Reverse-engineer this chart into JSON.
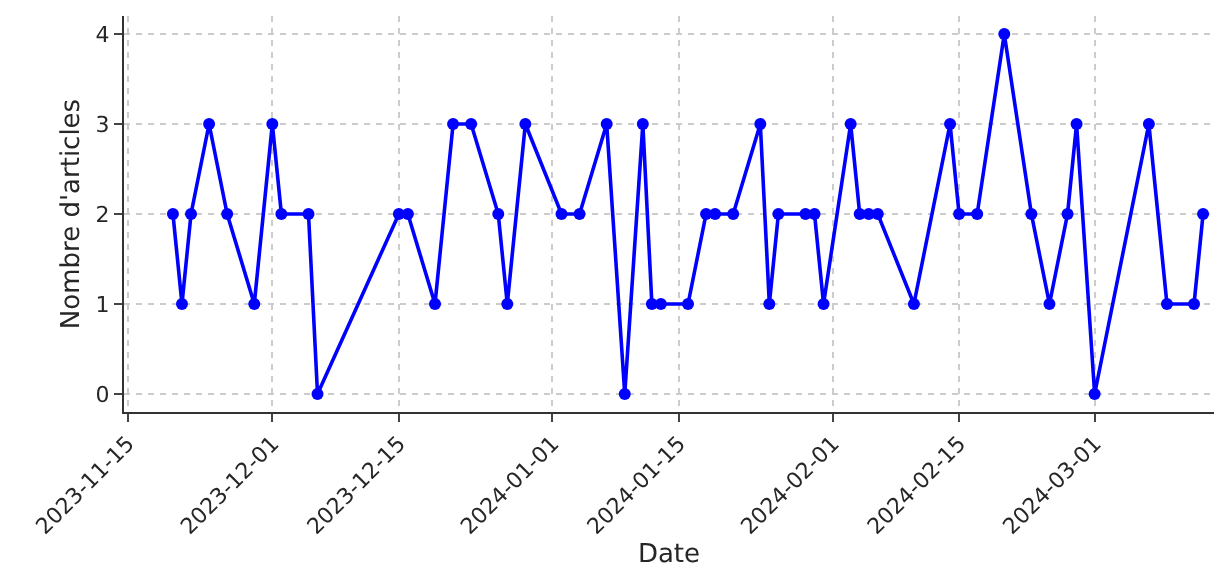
{
  "chart_data": {
    "type": "line",
    "xlabel": "Date",
    "ylabel": "Nombre d'articles",
    "x": [
      "2023-11-20",
      "2023-11-21",
      "2023-11-22",
      "2023-11-24",
      "2023-11-26",
      "2023-11-29",
      "2023-12-01",
      "2023-12-02",
      "2023-12-05",
      "2023-12-06",
      "2023-12-15",
      "2023-12-16",
      "2023-12-19",
      "2023-12-21",
      "2023-12-23",
      "2023-12-26",
      "2023-12-27",
      "2023-12-29",
      "2024-01-02",
      "2024-01-04",
      "2024-01-07",
      "2024-01-09",
      "2024-01-11",
      "2024-01-12",
      "2024-01-13",
      "2024-01-16",
      "2024-01-18",
      "2024-01-19",
      "2024-01-21",
      "2024-01-24",
      "2024-01-25",
      "2024-01-26",
      "2024-01-29",
      "2024-01-30",
      "2024-01-31",
      "2024-02-03",
      "2024-02-04",
      "2024-02-05",
      "2024-02-06",
      "2024-02-10",
      "2024-02-14",
      "2024-02-15",
      "2024-02-17",
      "2024-02-20",
      "2024-02-23",
      "2024-02-25",
      "2024-02-27",
      "2024-02-28",
      "2024-03-01",
      "2024-03-07",
      "2024-03-09",
      "2024-03-12",
      "2024-03-13"
    ],
    "series": [
      {
        "color": "#0000ff",
        "values": [
          2,
          1,
          2,
          3,
          2,
          1,
          3,
          2,
          2,
          0,
          2,
          2,
          1,
          3,
          3,
          2,
          1,
          3,
          2,
          2,
          3,
          0,
          3,
          1,
          1,
          1,
          2,
          2,
          2,
          3,
          1,
          2,
          2,
          2,
          1,
          3,
          2,
          2,
          2,
          1,
          3,
          2,
          2,
          4,
          2,
          1,
          2,
          3,
          0,
          3,
          1,
          1,
          2
        ]
      }
    ],
    "xlim": [
      "2023-11-14T14:00",
      "2024-03-14T05:00"
    ],
    "xticks": [
      {
        "value": "2023-11-15",
        "label": "2023-11-15"
      },
      {
        "value": "2023-12-01",
        "label": "2023-12-01"
      },
      {
        "value": "2023-12-15",
        "label": "2023-12-15"
      },
      {
        "value": "2024-01-01",
        "label": "2024-01-01"
      },
      {
        "value": "2024-01-15",
        "label": "2024-01-15"
      },
      {
        "value": "2024-02-01",
        "label": "2024-02-01"
      },
      {
        "value": "2024-02-15",
        "label": "2024-02-15"
      },
      {
        "value": "2024-03-01",
        "label": "2024-03-01"
      }
    ],
    "ylim": [
      -0.2,
      4.2
    ],
    "yticks": [
      0,
      1,
      2,
      3,
      4
    ],
    "grid": true,
    "marker": "circle",
    "line_style": "solid"
  }
}
